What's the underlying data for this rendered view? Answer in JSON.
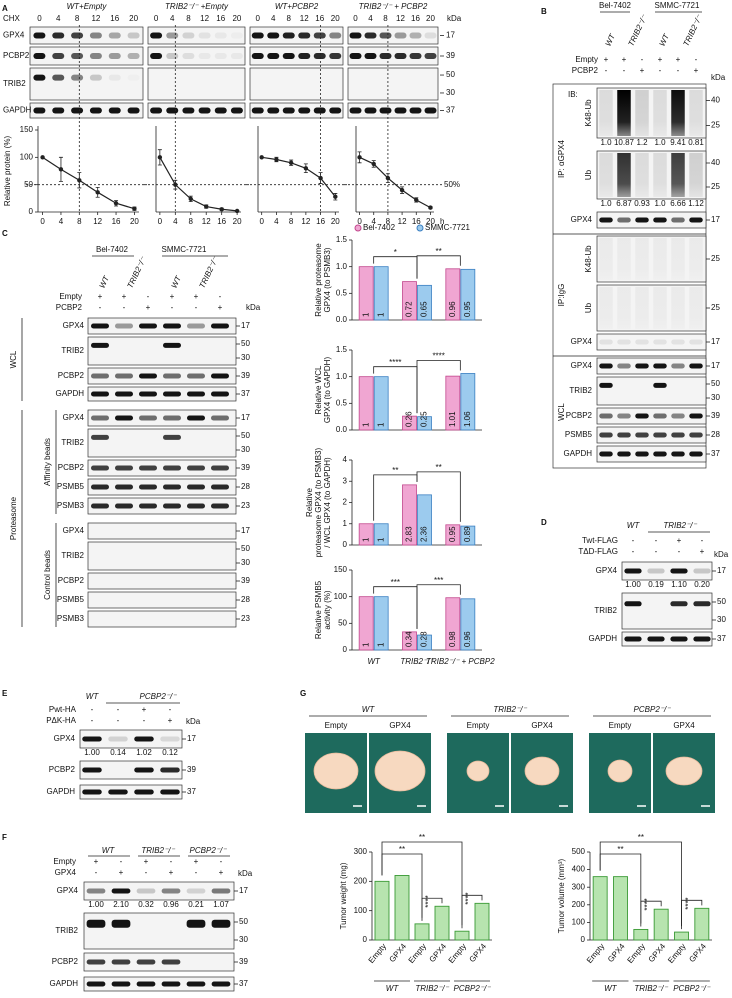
{
  "A": {
    "letter": "A",
    "treatment": "CHX",
    "unit": "kDa",
    "groups": [
      "WT+Empty",
      "TRIB2⁻/⁻ +Empty",
      "WT+PCBP2",
      "TRIB2⁻/⁻ + PCBP2"
    ],
    "timepoints": [
      "0",
      "4",
      "8",
      "12",
      "16",
      "20"
    ],
    "proteins": [
      "GPX4",
      "PCBP2",
      "TRIB2",
      "GAPDH"
    ],
    "markers": [
      "17",
      "39",
      "50",
      "30",
      "37"
    ]
  },
  "B": {
    "letter": "B",
    "cell_lines": [
      "Bel-7402",
      "SMMC-7721"
    ],
    "genotypes": [
      "WT",
      "TRIB2⁻/⁻",
      "WT",
      "TRIB2⁻/⁻"
    ],
    "conditions": [
      {
        "name": "Empty",
        "signs": [
          "+",
          "+",
          "-",
          "+",
          "+",
          "-"
        ]
      },
      {
        "name": "PCBP2",
        "signs": [
          "-",
          "-",
          "+",
          "-",
          "-",
          "+"
        ]
      }
    ],
    "unit": "kDa",
    "ib": "IB:",
    "ip_gpx4": "IP: αGPX4",
    "ip_igg": "IP:IgG",
    "wcl": "WCL",
    "blots": [
      {
        "label": "K48-Ub",
        "markers": [
          "40",
          "25"
        ],
        "quant": [
          "1.0",
          "10.87",
          "1.2",
          "1.0",
          "9.41",
          "0.81"
        ]
      },
      {
        "label": "Ub",
        "markers": [
          "40",
          "25"
        ],
        "quant": [
          "1.0",
          "6.87",
          "0.93",
          "1.0",
          "6.66",
          "1.12"
        ]
      },
      {
        "label": "GPX4",
        "markers": [
          "17"
        ]
      },
      {
        "label": "K48-Ub",
        "markers": [
          "25"
        ]
      },
      {
        "label": "Ub",
        "markers": [
          "25"
        ]
      },
      {
        "label": "GPX4",
        "markers": [
          "17"
        ]
      },
      {
        "label": "GPX4",
        "markers": [
          "17"
        ]
      },
      {
        "label": "TRIB2",
        "markers": [
          "50",
          "30"
        ]
      },
      {
        "label": "PCBP2",
        "markers": [
          "39"
        ]
      },
      {
        "label": "PSMB5",
        "markers": [
          "28"
        ]
      },
      {
        "label": "GAPDH",
        "markers": [
          "37"
        ]
      }
    ]
  },
  "C": {
    "letter": "C",
    "cell_lines": [
      "Bel-7402",
      "SMMC-7721"
    ],
    "genotypes": [
      "WT",
      "TRIB2⁻/⁻",
      "WT",
      "TRIB2⁻/⁻"
    ],
    "conditions": [
      {
        "name": "Empty",
        "signs": [
          "+",
          "+",
          "-",
          "+",
          "+",
          "-"
        ]
      },
      {
        "name": "PCBP2",
        "signs": [
          "-",
          "-",
          "+",
          "-",
          "-",
          "+"
        ]
      }
    ],
    "unit": "kDa",
    "proteasome": "Proteasome",
    "sections": [
      {
        "label": "WCL",
        "blots": [
          {
            "label": "GPX4",
            "markers": [
              "17"
            ]
          },
          {
            "label": "TRIB2",
            "markers": [
              "50",
              "30"
            ]
          },
          {
            "label": "PCBP2",
            "markers": [
              "39"
            ]
          },
          {
            "label": "GAPDH",
            "markers": [
              "37"
            ]
          }
        ]
      },
      {
        "label": "Affinity beads",
        "blots": [
          {
            "label": "GPX4",
            "markers": [
              "17"
            ]
          },
          {
            "label": "TRIB2",
            "markers": [
              "50",
              "30"
            ]
          },
          {
            "label": "PCBP2",
            "markers": [
              "39"
            ]
          },
          {
            "label": "PSMB5",
            "markers": [
              "28"
            ]
          },
          {
            "label": "PSMB3",
            "markers": [
              "23"
            ]
          }
        ]
      },
      {
        "label": "Control beads",
        "blots": [
          {
            "label": "GPX4",
            "markers": [
              "17"
            ]
          },
          {
            "label": "TRIB2",
            "markers": [
              "50",
              "30"
            ]
          },
          {
            "label": "PCBP2",
            "markers": [
              "39"
            ]
          },
          {
            "label": "PSMB5",
            "markers": [
              "28"
            ]
          },
          {
            "label": "PSMB3",
            "markers": [
              "23"
            ]
          }
        ]
      }
    ]
  },
  "D": {
    "letter": "D",
    "genotypes": [
      "WT",
      "TRIB2⁻/⁻"
    ],
    "conditions": [
      {
        "name": "Twt-FLAG",
        "signs": [
          "-",
          "-",
          "+",
          "-"
        ]
      },
      {
        "name": "TΔD-FLAG",
        "signs": [
          "-",
          "-",
          "-",
          "+"
        ]
      }
    ],
    "unit": "kDa",
    "blots": [
      {
        "label": "GPX4",
        "markers": [
          "17"
        ],
        "quant": [
          "1.00",
          "0.19",
          "1.10",
          "0.20"
        ]
      },
      {
        "label": "TRIB2",
        "markers": [
          "50",
          "30"
        ]
      },
      {
        "label": "GAPDH",
        "markers": [
          "37"
        ]
      }
    ]
  },
  "E": {
    "letter": "E",
    "genotypes": [
      "WT",
      "PCBP2⁻/⁻"
    ],
    "conditions": [
      {
        "name": "Pwt-HA",
        "signs": [
          "-",
          "-",
          "+",
          "-"
        ]
      },
      {
        "name": "PΔK-HA",
        "signs": [
          "-",
          "-",
          "-",
          "+"
        ]
      }
    ],
    "unit": "kDa",
    "blots": [
      {
        "label": "GPX4",
        "markers": [
          "17"
        ],
        "quant": [
          "1.00",
          "0.14",
          "1.02",
          "0.12"
        ]
      },
      {
        "label": "PCBP2",
        "markers": [
          "39"
        ]
      },
      {
        "label": "GAPDH",
        "markers": [
          "37"
        ]
      }
    ]
  },
  "F": {
    "letter": "F",
    "genotypes": [
      "WT",
      "TRIB2⁻/⁻",
      "PCBP2⁻/⁻"
    ],
    "conditions": [
      {
        "name": "Empty",
        "signs": [
          "+",
          "-",
          "+",
          "-",
          "+",
          "-"
        ]
      },
      {
        "name": "GPX4",
        "signs": [
          "-",
          "+",
          "-",
          "+",
          "-",
          "+"
        ]
      }
    ],
    "unit": "kDa",
    "blots": [
      {
        "label": "GPX4",
        "markers": [
          "17"
        ],
        "quant": [
          "1.00",
          "2.10",
          "0.32",
          "0.96",
          "0.21",
          "1.07"
        ]
      },
      {
        "label": "TRIB2",
        "markers": [
          "50",
          "30"
        ]
      },
      {
        "label": "PCBP2",
        "markers": [
          "39"
        ]
      },
      {
        "label": "GAPDH",
        "markers": [
          "37"
        ]
      }
    ]
  },
  "G": {
    "letter": "G",
    "groups": [
      "WT",
      "TRIB2⁻/⁻",
      "PCBP2⁻/⁻"
    ],
    "conditions": [
      "Empty",
      "GPX4"
    ]
  },
  "chart_data": [
    {
      "type": "line",
      "ylabel": "Relative protein (%)",
      "x": [
        0,
        4,
        8,
        12,
        16,
        20
      ],
      "xlim": [
        -1,
        21
      ],
      "xticks": [
        0,
        4,
        8,
        12,
        16,
        20
      ],
      "ylim": [
        0,
        150
      ],
      "yticks": [
        0,
        50,
        100,
        150
      ],
      "values": [
        100,
        78,
        58,
        36,
        16,
        6
      ],
      "errors": [
        0,
        22,
        14,
        9,
        5,
        3
      ],
      "color": "#222222",
      "half_life": 8,
      "threshold": 50
    },
    {
      "type": "line",
      "x": [
        0,
        4,
        8,
        12,
        16,
        20
      ],
      "xlim": [
        -1,
        21
      ],
      "xticks": [
        0,
        4,
        8,
        12,
        16,
        20
      ],
      "ylim": [
        0,
        150
      ],
      "values": [
        100,
        50,
        24,
        10,
        5,
        2
      ],
      "errors": [
        14,
        8,
        5,
        3,
        2,
        1
      ],
      "color": "#222222",
      "half_life": 4,
      "threshold": 50
    },
    {
      "type": "line",
      "x": [
        0,
        4,
        8,
        12,
        16,
        20
      ],
      "xlim": [
        -1,
        21
      ],
      "xticks": [
        0,
        4,
        8,
        12,
        16,
        20
      ],
      "ylim": [
        0,
        150
      ],
      "values": [
        100,
        96,
        90,
        80,
        62,
        28
      ],
      "errors": [
        0,
        4,
        5,
        8,
        10,
        6
      ],
      "color": "#222222",
      "half_life": 16,
      "threshold": 50
    },
    {
      "type": "line",
      "xlabel": "h",
      "x": [
        0,
        4,
        8,
        12,
        16,
        20
      ],
      "xlim": [
        -1,
        21
      ],
      "xticks": [
        0,
        4,
        8,
        12,
        16,
        20
      ],
      "ylim": [
        0,
        150
      ],
      "values": [
        100,
        88,
        62,
        40,
        22,
        8
      ],
      "errors": [
        10,
        6,
        8,
        6,
        4,
        2
      ],
      "color": "#222222",
      "half_life": 8,
      "threshold": {
        "value": 50,
        "label": "50%"
      }
    },
    {
      "type": "bar",
      "ylabel": [
        "Relative proteasome",
        "GPX4 (to PSMB3)"
      ],
      "series": [
        {
          "name": "Bel-7402",
          "color": "#f0a6d2",
          "values": [
            1,
            0.72,
            0.96
          ]
        },
        {
          "name": "SMMC-7721",
          "color": "#9ccbee",
          "values": [
            1,
            0.65,
            0.95
          ]
        }
      ],
      "ylim": [
        0,
        1.5
      ],
      "yticks": [
        {
          "value": 0,
          "label": "0.0"
        },
        0.5,
        {
          "value": 1,
          "label": "1.0"
        },
        1.5
      ],
      "significance": [
        "*",
        "**"
      ]
    },
    {
      "type": "bar",
      "ylabel": [
        "Relative WCL",
        "GPX4 (to GAPDH)"
      ],
      "series": [
        {
          "color": "#f0a6d2",
          "values": [
            1,
            0.26,
            1.01
          ]
        },
        {
          "color": "#9ccbee",
          "values": [
            1,
            0.25,
            1.06
          ]
        }
      ],
      "ylim": [
        0,
        1.5
      ],
      "yticks": [
        {
          "value": 0,
          "label": "0.0"
        },
        0.5,
        {
          "value": 1,
          "label": "1.0"
        },
        1.5
      ],
      "significance": [
        "****",
        "****"
      ]
    },
    {
      "type": "bar",
      "ylabel": [
        "Relative",
        "proteasome GPX4 (to PSMB3)",
        "/ WCL GPX4 (to GAPDH)"
      ],
      "series": [
        {
          "color": "#f0a6d2",
          "values": [
            1,
            2.83,
            0.95
          ]
        },
        {
          "color": "#9ccbee",
          "values": [
            1,
            2.36,
            0.89
          ]
        }
      ],
      "ylim": [
        0,
        4
      ],
      "yticks": [
        0,
        1,
        2,
        3,
        4
      ],
      "significance": [
        "**",
        "**"
      ]
    },
    {
      "type": "bar",
      "ylabel": [
        "Relative PSMB5",
        "activity (%)"
      ],
      "categories": [
        "WT",
        "TRIB2⁻/⁻",
        "TRIB2⁻/⁻ + PCBP2"
      ],
      "series": [
        {
          "color": "#f0a6d2",
          "values": [
            100,
            34,
            98
          ],
          "value_labels": [
            "1",
            "0.34",
            "0.98"
          ]
        },
        {
          "color": "#9ccbee",
          "values": [
            100,
            28,
            96
          ],
          "value_labels": [
            "1",
            "0.28",
            "0.96"
          ]
        }
      ],
      "ylim": [
        0,
        150
      ],
      "yticks": [
        0,
        50,
        100,
        150
      ],
      "significance": [
        "***",
        "***"
      ]
    },
    {
      "type": "bar",
      "ylabel": "Tumor weight (mg)",
      "categories": [
        "Empty",
        "GPX4",
        "Empty",
        "GPX4",
        "Empty",
        "GPX4"
      ],
      "groups": [
        "WT",
        "TRIB2⁻/⁻",
        "PCBP2⁻/⁻"
      ],
      "values": [
        200,
        220,
        55,
        115,
        30,
        125
      ],
      "color": "#b7e4af",
      "ylim": [
        0,
        300
      ],
      "yticks": [
        0,
        100,
        200,
        300
      ],
      "significance": [
        "**",
        "**",
        "****",
        "****"
      ]
    },
    {
      "type": "bar",
      "ylabel": "Tumor volume (mm³)",
      "categories": [
        "Empty",
        "GPX4",
        "Empty",
        "GPX4",
        "Empty",
        "GPX4"
      ],
      "groups": [
        "WT",
        "TRIB2⁻/⁻",
        "PCBP2⁻/⁻"
      ],
      "values": [
        360,
        360,
        60,
        175,
        45,
        180
      ],
      "color": "#b7e4af",
      "ylim": [
        0,
        500
      ],
      "yticks": [
        0,
        100,
        200,
        300,
        400,
        500
      ],
      "significance": [
        "**",
        "**",
        "****",
        "****"
      ]
    }
  ]
}
